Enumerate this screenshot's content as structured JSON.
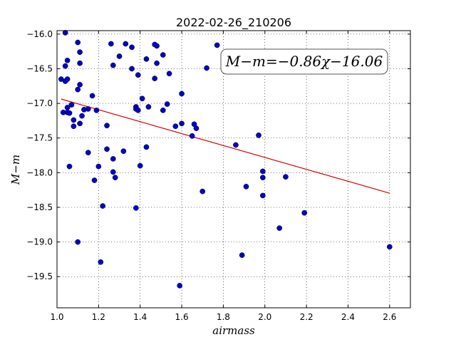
{
  "chart_data": {
    "type": "scatter",
    "title": "2022-02-26_210206",
    "xlabel": "airmass",
    "ylabel": "M−m",
    "xlim": [
      1.0,
      2.7
    ],
    "ylim": [
      -19.95,
      -15.95
    ],
    "x_ticks": [
      1.0,
      1.2,
      1.4,
      1.6,
      1.8,
      2.0,
      2.2,
      2.4,
      2.6
    ],
    "x_tick_labels": [
      "1.0",
      "1.2",
      "1.4",
      "1.6",
      "1.8",
      "2.0",
      "2.2",
      "2.4",
      "2.6"
    ],
    "y_ticks": [
      -16.0,
      -16.5,
      -17.0,
      -17.5,
      -18.0,
      -18.5,
      -19.0,
      -19.5
    ],
    "y_tick_labels": [
      "−16.0",
      "−16.5",
      "−17.0",
      "−17.5",
      "−18.0",
      "−18.5",
      "−19.0",
      "−19.5"
    ],
    "grid": true,
    "point_color": "#0000cc",
    "fit_color": "#dd0000",
    "annotation": "M−m=−0.86χ−16.06",
    "fit": {
      "slope": -0.86,
      "intercept": -16.06,
      "x_range": [
        1.02,
        2.6
      ]
    },
    "points": [
      [
        1.04,
        -15.98
      ],
      [
        1.02,
        -16.65
      ],
      [
        1.04,
        -16.68
      ],
      [
        1.05,
        -16.65
      ],
      [
        1.05,
        -16.38
      ],
      [
        1.04,
        -16.46
      ],
      [
        1.1,
        -16.12
      ],
      [
        1.11,
        -16.26
      ],
      [
        1.11,
        -16.42
      ],
      [
        1.1,
        -16.8
      ],
      [
        1.11,
        -16.73
      ],
      [
        1.05,
        -17.06
      ],
      [
        1.07,
        -17.02
      ],
      [
        1.03,
        -17.13
      ],
      [
        1.05,
        -17.13
      ],
      [
        1.06,
        -17.14
      ],
      [
        1.08,
        -17.24
      ],
      [
        1.08,
        -17.33
      ],
      [
        1.11,
        -17.29
      ],
      [
        1.12,
        -17.18
      ],
      [
        1.13,
        -17.09
      ],
      [
        1.15,
        -17.08
      ],
      [
        1.17,
        -16.89
      ],
      [
        1.19,
        -17.1
      ],
      [
        1.06,
        -17.91
      ],
      [
        1.15,
        -17.71
      ],
      [
        1.2,
        -17.91
      ],
      [
        1.18,
        -18.11
      ],
      [
        1.22,
        -18.48
      ],
      [
        1.1,
        -19.0
      ],
      [
        1.21,
        -19.29
      ],
      [
        1.26,
        -16.14
      ],
      [
        1.27,
        -16.45
      ],
      [
        1.3,
        -16.32
      ],
      [
        1.33,
        -16.14
      ],
      [
        1.36,
        -16.19
      ],
      [
        1.36,
        -16.5
      ],
      [
        1.39,
        -16.59
      ],
      [
        1.24,
        -17.32
      ],
      [
        1.24,
        -17.66
      ],
      [
        1.27,
        -17.8
      ],
      [
        1.27,
        -17.99
      ],
      [
        1.28,
        -18.07
      ],
      [
        1.32,
        -17.69
      ],
      [
        1.38,
        -17.05
      ],
      [
        1.38,
        -17.08
      ],
      [
        1.39,
        -17.1
      ],
      [
        1.41,
        -16.93
      ],
      [
        1.43,
        -16.36
      ],
      [
        1.44,
        -17.05
      ],
      [
        1.4,
        -17.9
      ],
      [
        1.43,
        -17.63
      ],
      [
        1.38,
        -18.51
      ],
      [
        1.47,
        -16.15
      ],
      [
        1.48,
        -16.17
      ],
      [
        1.48,
        -16.42
      ],
      [
        1.47,
        -16.64
      ],
      [
        1.51,
        -16.3
      ],
      [
        1.54,
        -16.57
      ],
      [
        1.51,
        -17.1
      ],
      [
        1.53,
        -17.01
      ],
      [
        1.57,
        -17.33
      ],
      [
        1.6,
        -16.86
      ],
      [
        1.6,
        -17.29
      ],
      [
        1.66,
        -17.3
      ],
      [
        1.67,
        -17.36
      ],
      [
        1.65,
        -17.47
      ],
      [
        1.72,
        -16.49
      ],
      [
        1.77,
        -16.16
      ],
      [
        1.7,
        -18.27
      ],
      [
        1.59,
        -19.63
      ],
      [
        1.86,
        -17.6
      ],
      [
        1.91,
        -18.2
      ],
      [
        1.97,
        -17.46
      ],
      [
        1.99,
        -17.98
      ],
      [
        1.99,
        -18.07
      ],
      [
        1.99,
        -18.33
      ],
      [
        1.89,
        -19.19
      ],
      [
        2.1,
        -18.06
      ],
      [
        2.07,
        -18.8
      ],
      [
        2.19,
        -18.58
      ],
      [
        2.6,
        -19.07
      ]
    ]
  }
}
